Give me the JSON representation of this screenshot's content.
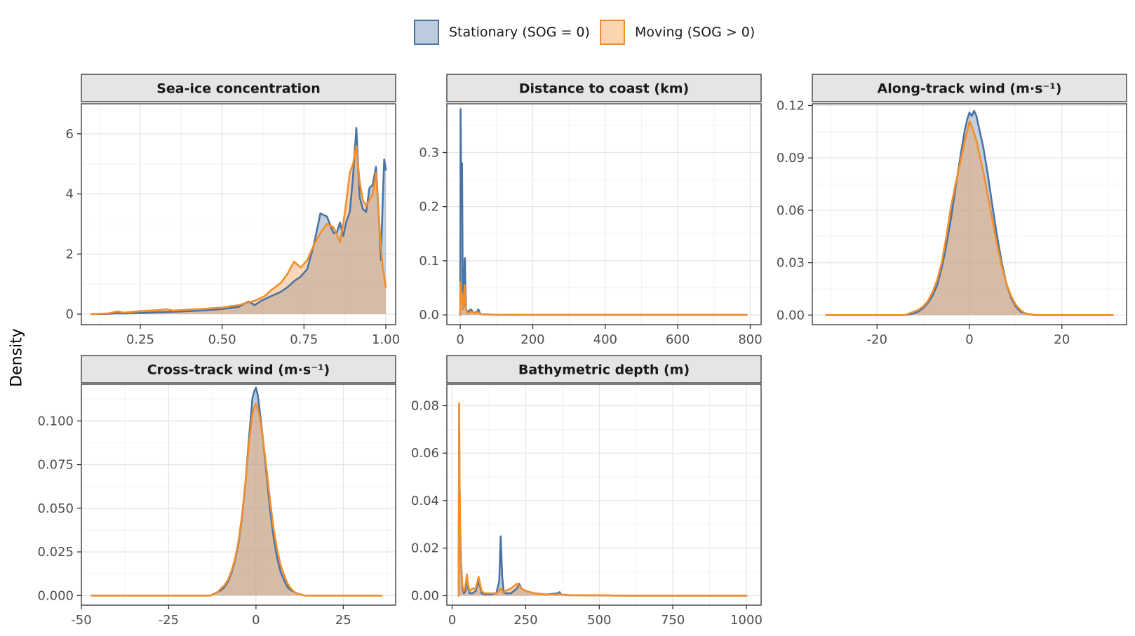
{
  "legend": {
    "items": [
      {
        "label": "Stationary (SOG = 0)",
        "stroke": "#4a73a5",
        "fill": "#bccbdd"
      },
      {
        "label": "Moving (SOG > 0)",
        "stroke": "#f28e2b",
        "fill": "#fbd4b0"
      }
    ]
  },
  "y_axis_label": "Density",
  "chart_data": [
    {
      "type": "area",
      "title": "Sea-ice concentration",
      "xlabel": "",
      "ylabel": "Density",
      "xlim": [
        0.07,
        1.03
      ],
      "ylim": [
        -0.35,
        7.0
      ],
      "xticks": [
        0.25,
        0.5,
        0.75,
        1.0
      ],
      "xtick_labels": [
        "0.25",
        "0.50",
        "0.75",
        "1.00"
      ],
      "yticks": [
        0,
        2,
        4,
        6
      ],
      "ytick_labels": [
        "0",
        "2",
        "4",
        "6"
      ],
      "series": [
        {
          "name": "Stationary (SOG = 0)",
          "x": [
            0.1,
            0.15,
            0.18,
            0.2,
            0.25,
            0.3,
            0.35,
            0.4,
            0.45,
            0.5,
            0.55,
            0.58,
            0.6,
            0.62,
            0.65,
            0.68,
            0.7,
            0.72,
            0.74,
            0.76,
            0.78,
            0.8,
            0.82,
            0.84,
            0.85,
            0.86,
            0.87,
            0.88,
            0.89,
            0.9,
            0.91,
            0.92,
            0.93,
            0.94,
            0.95,
            0.96,
            0.97,
            0.98,
            0.985,
            0.99,
            0.995,
            1.0
          ],
          "y": [
            0.0,
            0.01,
            0.03,
            0.02,
            0.04,
            0.06,
            0.08,
            0.1,
            0.13,
            0.17,
            0.24,
            0.42,
            0.3,
            0.45,
            0.6,
            0.75,
            0.9,
            1.1,
            1.25,
            1.5,
            2.3,
            3.35,
            3.25,
            2.7,
            2.7,
            3.05,
            2.6,
            3.1,
            3.4,
            4.6,
            6.2,
            3.9,
            3.5,
            3.4,
            4.2,
            4.3,
            4.9,
            3.0,
            1.8,
            3.6,
            5.15,
            4.8
          ]
        },
        {
          "name": "Moving (SOG > 0)",
          "x": [
            0.1,
            0.15,
            0.18,
            0.2,
            0.25,
            0.3,
            0.33,
            0.35,
            0.4,
            0.45,
            0.5,
            0.55,
            0.6,
            0.63,
            0.65,
            0.68,
            0.7,
            0.72,
            0.74,
            0.76,
            0.78,
            0.8,
            0.82,
            0.84,
            0.86,
            0.87,
            0.88,
            0.89,
            0.9,
            0.91,
            0.92,
            0.93,
            0.94,
            0.95,
            0.96,
            0.97,
            0.98,
            0.99,
            1.0
          ],
          "y": [
            0.0,
            0.02,
            0.09,
            0.05,
            0.1,
            0.13,
            0.16,
            0.12,
            0.15,
            0.18,
            0.22,
            0.3,
            0.45,
            0.6,
            0.8,
            1.05,
            1.35,
            1.75,
            1.55,
            1.8,
            2.3,
            2.7,
            3.0,
            2.9,
            2.4,
            3.0,
            3.8,
            4.7,
            5.0,
            5.6,
            4.4,
            3.8,
            3.6,
            3.8,
            4.0,
            4.7,
            3.0,
            1.6,
            0.9
          ]
        }
      ]
    },
    {
      "type": "area",
      "title": "Distance to coast (km)",
      "xlabel": "",
      "ylabel": "Density",
      "xlim": [
        -37,
        830
      ],
      "ylim": [
        -0.018,
        0.39
      ],
      "xticks": [
        0,
        200,
        400,
        600,
        800
      ],
      "xtick_labels": [
        "0",
        "200",
        "400",
        "600",
        "800"
      ],
      "yticks": [
        0,
        0.1,
        0.2,
        0.3
      ],
      "ytick_labels": [
        "0.0",
        "0.1",
        "0.2",
        "0.3"
      ],
      "series": [
        {
          "name": "Stationary (SOG = 0)",
          "x": [
            0,
            1,
            3,
            4,
            5,
            6,
            7,
            8,
            10,
            12,
            13,
            14,
            16,
            18,
            20,
            25,
            30,
            35,
            40,
            45,
            50,
            55,
            60,
            80,
            100,
            150,
            200,
            300,
            400,
            500,
            600,
            700,
            790
          ],
          "y": [
            0.0,
            0.38,
            0.2,
            0.25,
            0.28,
            0.16,
            0.03,
            0.01,
            0.02,
            0.1,
            0.105,
            0.05,
            0.01,
            0.008,
            0.005,
            0.008,
            0.01,
            0.005,
            0.004,
            0.005,
            0.01,
            0.002,
            0.001,
            0.0006,
            0.0003,
            0.0001,
            0.0,
            0.0,
            0.0,
            0.0,
            0.0,
            0.0,
            0.0
          ]
        },
        {
          "name": "Moving (SOG > 0)",
          "x": [
            0,
            1,
            2,
            3,
            4,
            5,
            6,
            8,
            10,
            12,
            14,
            16,
            18,
            20,
            25,
            30,
            35,
            40,
            45,
            50,
            55,
            60,
            80,
            100,
            150,
            200,
            300,
            400,
            500,
            600,
            700,
            790
          ],
          "y": [
            0.0,
            0.06,
            0.05,
            0.03,
            0.028,
            0.04,
            0.025,
            0.01,
            0.03,
            0.055,
            0.02,
            0.01,
            0.005,
            0.003,
            0.004,
            0.006,
            0.005,
            0.003,
            0.004,
            0.005,
            0.002,
            0.001,
            0.0005,
            0.0003,
            0.0001,
            0.0,
            0.0,
            0.0,
            0.0,
            0.0,
            0.0,
            0.0
          ]
        }
      ]
    },
    {
      "type": "area",
      "title": "Along-track wind (m·s⁻¹)",
      "xlabel": "",
      "ylabel": "Density",
      "xlim": [
        -34,
        34
      ],
      "ylim": [
        -0.0055,
        0.121
      ],
      "xticks": [
        -20,
        0,
        20
      ],
      "xtick_labels": [
        "-20",
        "0",
        "20"
      ],
      "yticks": [
        0,
        0.03,
        0.06,
        0.09,
        0.12
      ],
      "ytick_labels": [
        "0.00",
        "0.03",
        "0.06",
        "0.09",
        "0.12"
      ],
      "series": [
        {
          "name": "Stationary (SOG = 0)",
          "x": [
            -31,
            -20,
            -14,
            -12,
            -11,
            -10,
            -9,
            -8,
            -7,
            -6,
            -5,
            -4,
            -3,
            -2,
            -1,
            -0.5,
            0,
            0.5,
            1,
            1.5,
            2,
            3,
            4,
            5,
            6,
            7,
            8,
            9,
            10,
            11,
            12,
            14,
            20,
            31
          ],
          "y": [
            0.0,
            0.0,
            0.0,
            0.001,
            0.002,
            0.004,
            0.007,
            0.011,
            0.017,
            0.027,
            0.04,
            0.055,
            0.073,
            0.09,
            0.106,
            0.112,
            0.116,
            0.114,
            0.117,
            0.114,
            0.108,
            0.096,
            0.08,
            0.062,
            0.045,
            0.03,
            0.018,
            0.01,
            0.005,
            0.002,
            0.001,
            0.0,
            0.0,
            0.0
          ]
        },
        {
          "name": "Moving (SOG > 0)",
          "x": [
            -31,
            -20,
            -14,
            -12,
            -11,
            -10,
            -9,
            -8,
            -7,
            -6,
            -5,
            -4,
            -3,
            -2,
            -1,
            -0.5,
            0,
            0.5,
            1,
            1.5,
            2,
            3,
            4,
            5,
            6,
            7,
            8,
            9,
            10,
            11,
            12,
            14,
            20,
            31
          ],
          "y": [
            0.0,
            0.0,
            0.0,
            0.002,
            0.003,
            0.005,
            0.008,
            0.013,
            0.02,
            0.03,
            0.045,
            0.062,
            0.075,
            0.087,
            0.1,
            0.105,
            0.111,
            0.108,
            0.104,
            0.1,
            0.094,
            0.082,
            0.068,
            0.054,
            0.04,
            0.028,
            0.018,
            0.011,
            0.006,
            0.003,
            0.001,
            0.0,
            0.0,
            0.0
          ]
        }
      ]
    },
    {
      "type": "area",
      "title": "Cross-track wind (m·s⁻¹)",
      "xlabel": "",
      "ylabel": "Density",
      "xlim": [
        -50,
        40
      ],
      "ylim": [
        -0.0055,
        0.121
      ],
      "xticks": [
        -50,
        -25,
        0,
        25
      ],
      "xtick_labels": [
        "-50",
        "-25",
        "0",
        "25"
      ],
      "yticks": [
        0,
        0.025,
        0.05,
        0.075,
        0.1
      ],
      "ytick_labels": [
        "0.000",
        "0.025",
        "0.050",
        "0.075",
        "0.100"
      ],
      "series": [
        {
          "name": "Stationary (SOG = 0)",
          "x": [
            -47,
            -20,
            -13,
            -12,
            -11,
            -10,
            -9,
            -8,
            -7,
            -6,
            -5,
            -4,
            -3,
            -2,
            -1,
            -0.5,
            0,
            0.5,
            1,
            2,
            3,
            4,
            5,
            6,
            7,
            8,
            9,
            10,
            11,
            12,
            14,
            20,
            36
          ],
          "y": [
            0.0,
            0.0,
            0.0,
            0.001,
            0.002,
            0.003,
            0.005,
            0.008,
            0.013,
            0.02,
            0.03,
            0.045,
            0.065,
            0.09,
            0.113,
            0.117,
            0.119,
            0.115,
            0.107,
            0.09,
            0.07,
            0.05,
            0.034,
            0.022,
            0.014,
            0.009,
            0.005,
            0.003,
            0.002,
            0.001,
            0.0,
            0.0,
            0.0
          ]
        },
        {
          "name": "Moving (SOG > 0)",
          "x": [
            -47,
            -20,
            -13,
            -12,
            -11,
            -10,
            -9,
            -8,
            -7,
            -6,
            -5,
            -4,
            -3,
            -2,
            -1,
            -0.5,
            0,
            0.5,
            1,
            2,
            3,
            4,
            5,
            6,
            7,
            8,
            9,
            10,
            11,
            12,
            14,
            20,
            36
          ],
          "y": [
            0.0,
            0.0,
            0.0,
            0.001,
            0.002,
            0.004,
            0.006,
            0.009,
            0.014,
            0.021,
            0.031,
            0.046,
            0.065,
            0.087,
            0.104,
            0.108,
            0.11,
            0.107,
            0.103,
            0.09,
            0.073,
            0.055,
            0.039,
            0.027,
            0.018,
            0.012,
            0.007,
            0.004,
            0.002,
            0.001,
            0.0,
            0.0,
            0.0
          ]
        }
      ]
    },
    {
      "type": "area",
      "title": "Bathymetric depth (m)",
      "xlabel": "",
      "ylabel": "Density",
      "xlim": [
        -18,
        1050
      ],
      "ylim": [
        -0.004,
        0.089
      ],
      "xticks": [
        0,
        250,
        500,
        750,
        1000
      ],
      "xtick_labels": [
        "0",
        "250",
        "500",
        "750",
        "1000"
      ],
      "yticks": [
        0,
        0.02,
        0.04,
        0.06,
        0.08
      ],
      "ytick_labels": [
        "0.00",
        "0.02",
        "0.04",
        "0.06",
        "0.08"
      ],
      "series": [
        {
          "name": "Stationary (SOG = 0)",
          "x": [
            22,
            24,
            25,
            27,
            30,
            35,
            40,
            45,
            50,
            55,
            60,
            70,
            80,
            90,
            95,
            100,
            110,
            130,
            150,
            160,
            165,
            170,
            175,
            180,
            200,
            210,
            220,
            228,
            235,
            250,
            280,
            320,
            360,
            365,
            370,
            400,
            500,
            600,
            700,
            800,
            1000
          ],
          "y": [
            0.0,
            0.08,
            0.05,
            0.03,
            0.015,
            0.003,
            0.001,
            0.002,
            0.007,
            0.003,
            0.001,
            0.001,
            0.002,
            0.006,
            0.004,
            0.001,
            0.0005,
            0.0005,
            0.001,
            0.006,
            0.025,
            0.008,
            0.002,
            0.001,
            0.001,
            0.002,
            0.003,
            0.005,
            0.003,
            0.002,
            0.001,
            0.0005,
            0.001,
            0.0015,
            0.0005,
            0.0002,
            0.0001,
            0.0,
            0.0,
            0.0,
            0.0
          ]
        },
        {
          "name": "Moving (SOG > 0)",
          "x": [
            22,
            24,
            25,
            27,
            30,
            35,
            40,
            45,
            50,
            55,
            60,
            70,
            80,
            90,
            95,
            100,
            110,
            130,
            150,
            160,
            165,
            170,
            175,
            180,
            200,
            210,
            220,
            228,
            235,
            250,
            280,
            320,
            360,
            365,
            370,
            400,
            500,
            600,
            700,
            800,
            1000
          ],
          "y": [
            0.0,
            0.081,
            0.055,
            0.03,
            0.015,
            0.004,
            0.002,
            0.004,
            0.009,
            0.004,
            0.002,
            0.003,
            0.003,
            0.008,
            0.005,
            0.002,
            0.001,
            0.001,
            0.001,
            0.002,
            0.003,
            0.002,
            0.001,
            0.002,
            0.003,
            0.004,
            0.005,
            0.004,
            0.003,
            0.002,
            0.001,
            0.0005,
            0.0005,
            0.0007,
            0.0005,
            0.0002,
            0.0001,
            0.0,
            0.0,
            0.0,
            0.0
          ]
        }
      ]
    }
  ]
}
